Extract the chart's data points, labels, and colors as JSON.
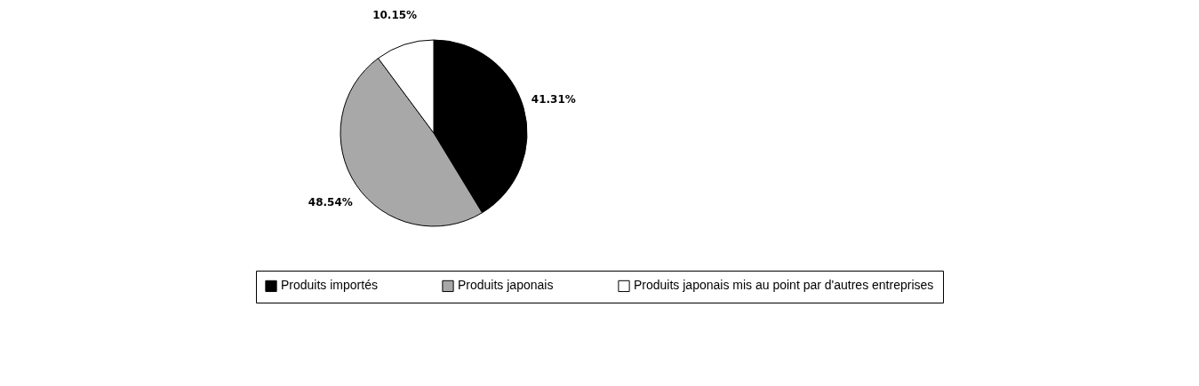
{
  "chart_data": {
    "type": "pie",
    "categories": [
      "Produits importés",
      "Produits japonais",
      "Produits japonais mis au point par d'autres entreprises"
    ],
    "values": [
      41.31,
      48.54,
      10.15
    ],
    "colors": [
      "#000000",
      "#a8a8a8",
      "#ffffff"
    ],
    "value_labels": [
      "41.31%",
      "48.54%",
      "10.15%"
    ],
    "legend": "bottom"
  }
}
